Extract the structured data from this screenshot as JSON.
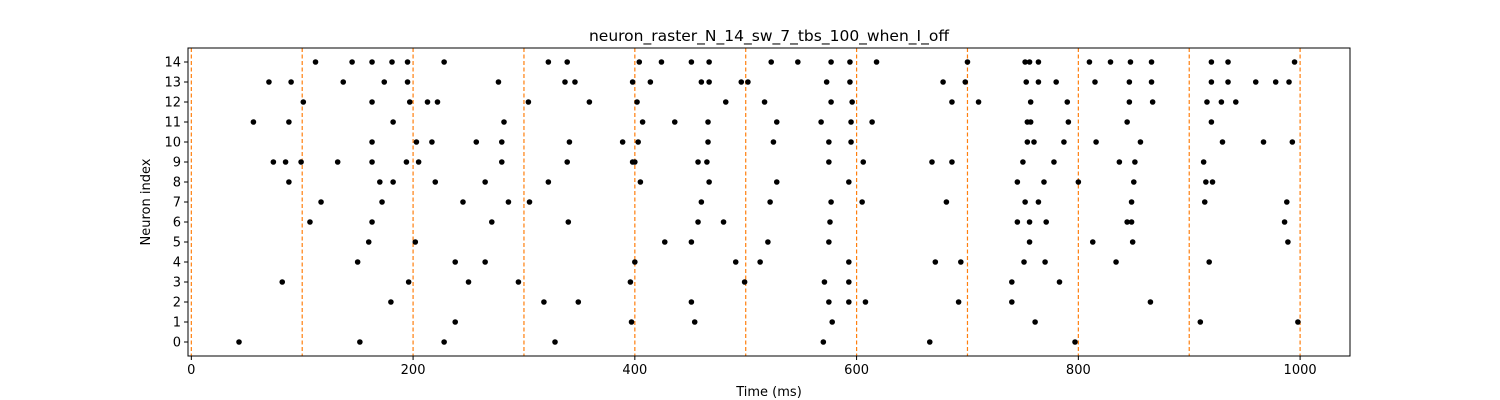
{
  "chart_data": {
    "type": "scatter",
    "title": "neuron_raster_N_14_sw_7_tbs_100_when_I_off",
    "xlabel": "Time (ms)",
    "ylabel": "Neuron index",
    "xlim": [
      -3,
      1045
    ],
    "ylim": [
      -0.7,
      14.7
    ],
    "xticks": [
      0,
      200,
      400,
      600,
      800,
      1000
    ],
    "yticks": [
      0,
      1,
      2,
      3,
      4,
      5,
      6,
      7,
      8,
      9,
      10,
      11,
      12,
      13,
      14
    ],
    "grid": false,
    "marker_color": "#000000",
    "vline_color": "#ff7f0e",
    "vlines": [
      0,
      100,
      200,
      300,
      400,
      500,
      600,
      700,
      800,
      900,
      1000
    ],
    "spikes": [
      {
        "neuron": 14,
        "times": [
          112,
          145,
          163,
          181,
          195,
          228,
          322,
          339,
          404,
          424,
          451,
          467,
          523,
          547,
          577,
          594,
          618,
          700,
          752,
          756,
          764,
          810,
          829,
          847,
          866,
          920,
          935,
          995
        ]
      },
      {
        "neuron": 13,
        "times": [
          70,
          90,
          137,
          174,
          195,
          277,
          337,
          346,
          398,
          414,
          460,
          467,
          496,
          502,
          573,
          594,
          678,
          698,
          753,
          764,
          780,
          815,
          846,
          866,
          920,
          935,
          960,
          978,
          990
        ]
      },
      {
        "neuron": 12,
        "times": [
          101,
          163,
          197,
          213,
          222,
          304,
          359,
          402,
          482,
          517,
          577,
          596,
          686,
          710,
          757,
          790,
          846,
          867,
          916,
          929,
          942
        ]
      },
      {
        "neuron": 11,
        "times": [
          56,
          88,
          182,
          282,
          407,
          436,
          466,
          528,
          568,
          595,
          614,
          754,
          757,
          791,
          844,
          920
        ]
      },
      {
        "neuron": 10,
        "times": [
          163,
          203,
          217,
          257,
          280,
          341,
          389,
          403,
          466,
          525,
          575,
          595,
          754,
          760,
          787,
          816,
          856,
          930,
          967,
          993
        ]
      },
      {
        "neuron": 9,
        "times": [
          74,
          85,
          99,
          132,
          163,
          194,
          205,
          280,
          339,
          398,
          400,
          457,
          465,
          575,
          606,
          668,
          686,
          750,
          778,
          837,
          851,
          913
        ]
      },
      {
        "neuron": 8,
        "times": [
          88,
          170,
          182,
          220,
          265,
          322,
          405,
          467,
          528,
          593,
          745,
          769,
          800,
          850,
          915,
          921
        ]
      },
      {
        "neuron": 7,
        "times": [
          117,
          172,
          245,
          286,
          305,
          460,
          522,
          577,
          605,
          681,
          752,
          764,
          848,
          914,
          988
        ]
      },
      {
        "neuron": 6,
        "times": [
          107,
          163,
          271,
          340,
          457,
          480,
          576,
          745,
          756,
          771,
          844,
          848,
          986
        ]
      },
      {
        "neuron": 5,
        "times": [
          160,
          202,
          427,
          451,
          520,
          575,
          756,
          813,
          849,
          989
        ]
      },
      {
        "neuron": 4,
        "times": [
          150,
          238,
          265,
          400,
          491,
          513,
          593,
          671,
          694,
          751,
          770,
          834,
          918
        ]
      },
      {
        "neuron": 3,
        "times": [
          82,
          196,
          250,
          295,
          396,
          499,
          571,
          593,
          740,
          783
        ]
      },
      {
        "neuron": 2,
        "times": [
          180,
          318,
          349,
          451,
          575,
          593,
          608,
          692,
          740,
          865
        ]
      },
      {
        "neuron": 1,
        "times": [
          238,
          397,
          454,
          578,
          761,
          910,
          998
        ]
      },
      {
        "neuron": 0,
        "times": [
          43,
          152,
          228,
          328,
          570,
          666,
          797
        ]
      }
    ]
  }
}
